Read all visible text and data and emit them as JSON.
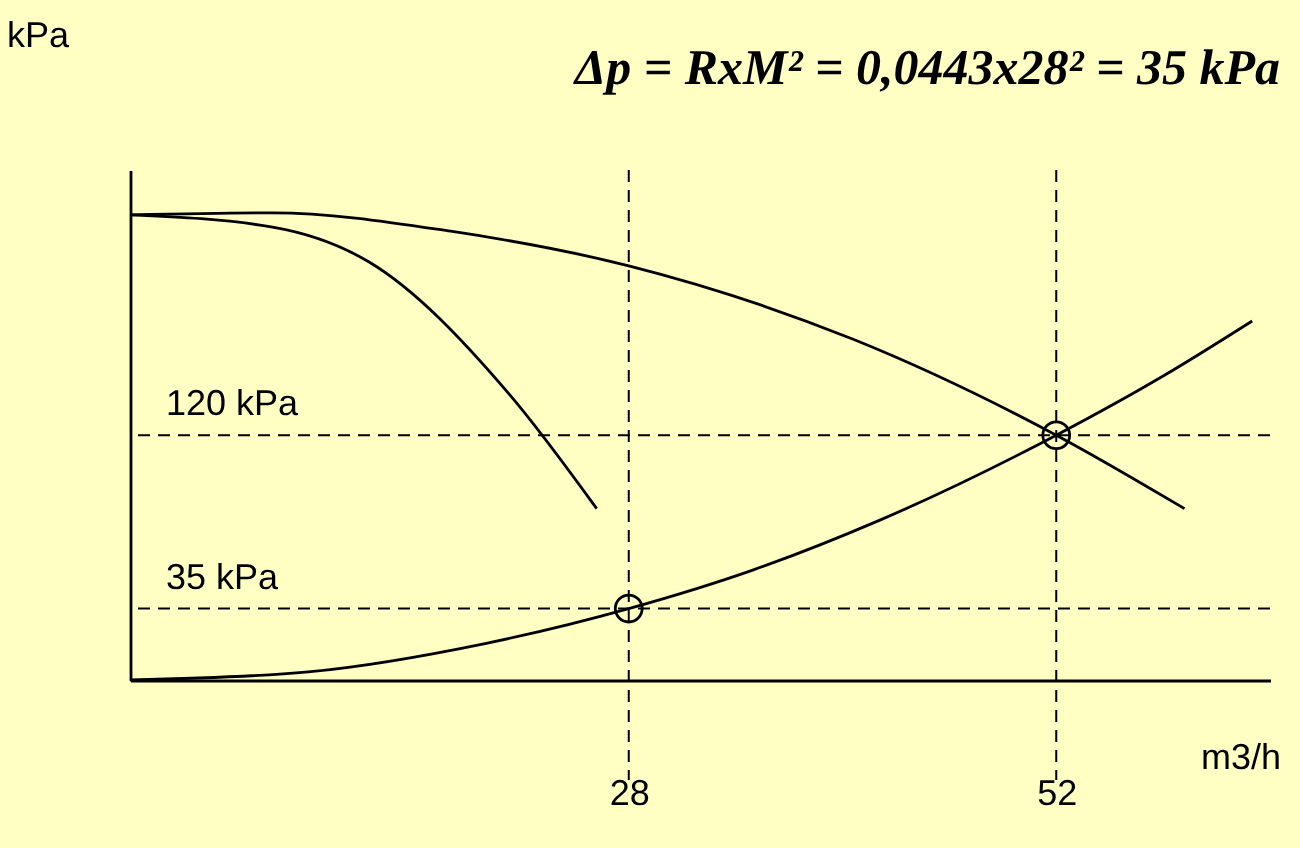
{
  "chart_data": {
    "type": "line",
    "title": "Δp = RxM² = 0,0443x28² = 35 kPa",
    "xlabel": "m3/h",
    "ylabel": "kPa",
    "xlim": [
      0,
      64
    ],
    "xticks": [
      28,
      52
    ],
    "ylim": [
      0,
      250
    ],
    "tick_labels": "x",
    "grid": false,
    "line_style": "solid",
    "marker": "none",
    "series": [
      {
        "color": "#000000",
        "x": [
          0,
          10,
          20,
          28,
          35,
          42,
          52,
          58,
          63
        ],
        "values": [
          0,
          4,
          18,
          35,
          54,
          78,
          120,
          149,
          176
        ]
      },
      {
        "color": "#000000",
        "x": [
          0,
          8,
          18,
          28,
          40.6,
          52,
          59.2
        ],
        "values": [
          228,
          229,
          220,
          203,
          167,
          120,
          84
        ]
      },
      {
        "color": "#000000",
        "x": [
          0,
          8,
          13.4,
          21.3,
          26.2
        ],
        "values": [
          228,
          222,
          205,
          140,
          84
        ]
      },
      {
        "type": "scatter",
        "color": "#000000",
        "marker": "circle",
        "x": [
          28,
          52
        ],
        "values": [
          35,
          120
        ]
      }
    ],
    "ref_lines": [
      {
        "axis": "y",
        "value": 120,
        "label": "120 kPa",
        "line_style": "dashed"
      },
      {
        "axis": "y",
        "value": 35,
        "label": "35 kPa",
        "line_style": "dashed"
      },
      {
        "axis": "x",
        "value": 28,
        "label": null,
        "line_style": "dashed"
      },
      {
        "axis": "x",
        "value": 52,
        "label": null,
        "line_style": "dashed"
      }
    ]
  }
}
